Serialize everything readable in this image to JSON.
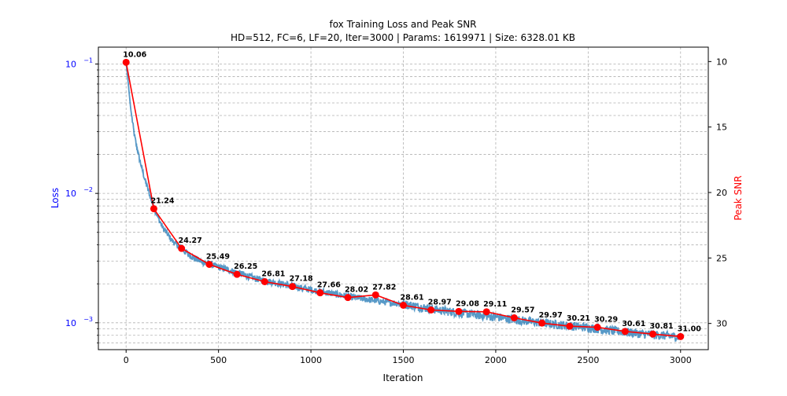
{
  "chart_data": {
    "type": "line",
    "title": "fox Training Loss and Peak SNR",
    "subtitle": "HD=512, FC=6, LF=20, Iter=3000 | Params: 1619971 | Size: 6328.01 KB",
    "xlabel": "Iteration",
    "ylabel_left": "Loss",
    "ylabel_right": "Peak SNR",
    "xlim": [
      -150,
      3150
    ],
    "ylim_left": [
      0.00062,
      0.135
    ],
    "ylim_right": [
      8.9,
      32.0
    ],
    "left_scale": "log",
    "right_axis_inverted": true,
    "grid": true,
    "x_ticks": [
      0,
      500,
      1000,
      1500,
      2000,
      2500,
      3000
    ],
    "x_tick_labels": [
      "0",
      "500",
      "1000",
      "1500",
      "2000",
      "2500",
      "3000"
    ],
    "left_ticks": [
      {
        "value": 0.1,
        "label": "10^-1",
        "base": "10",
        "exp": "−1"
      },
      {
        "value": 0.01,
        "label": "10^-2",
        "base": "10",
        "exp": "−2"
      },
      {
        "value": 0.001,
        "label": "10^-3",
        "base": "10",
        "exp": "−3"
      }
    ],
    "right_ticks": [
      10,
      15,
      20,
      25,
      30
    ],
    "right_tick_labels": [
      "10",
      "15",
      "20",
      "25",
      "30"
    ],
    "loss_series": {
      "color": "#1f77b4",
      "keypoints": [
        [
          0,
          0.102
        ],
        [
          10,
          0.075
        ],
        [
          25,
          0.045
        ],
        [
          45,
          0.028
        ],
        [
          70,
          0.019
        ],
        [
          100,
          0.013
        ],
        [
          130,
          0.0095
        ],
        [
          150,
          0.0078
        ],
        [
          175,
          0.0064
        ],
        [
          200,
          0.0054
        ],
        [
          250,
          0.0043
        ],
        [
          300,
          0.0037
        ],
        [
          350,
          0.0033
        ],
        [
          400,
          0.003
        ],
        [
          450,
          0.00285
        ],
        [
          500,
          0.0027
        ],
        [
          600,
          0.00245
        ],
        [
          700,
          0.0022
        ],
        [
          800,
          0.00205
        ],
        [
          900,
          0.00192
        ],
        [
          1000,
          0.0018
        ],
        [
          1100,
          0.0017
        ],
        [
          1200,
          0.0016
        ],
        [
          1300,
          0.00152
        ],
        [
          1400,
          0.00145
        ],
        [
          1500,
          0.0014
        ],
        [
          1600,
          0.00132
        ],
        [
          1700,
          0.00125
        ],
        [
          1800,
          0.0012
        ],
        [
          1900,
          0.00115
        ],
        [
          2000,
          0.00111
        ],
        [
          2100,
          0.00106
        ],
        [
          2200,
          0.00102
        ],
        [
          2300,
          0.00098
        ],
        [
          2400,
          0.00095
        ],
        [
          2500,
          0.00092
        ],
        [
          2600,
          0.00088
        ],
        [
          2700,
          0.00085
        ],
        [
          2800,
          0.00082
        ],
        [
          2900,
          0.0008
        ],
        [
          3000,
          0.00078
        ]
      ]
    },
    "psnr_series": {
      "color": "#ff0000",
      "x": [
        0,
        150,
        300,
        450,
        600,
        750,
        900,
        1050,
        1200,
        1350,
        1500,
        1650,
        1800,
        1950,
        2100,
        2250,
        2400,
        2550,
        2700,
        2850,
        3000
      ],
      "y": [
        10.06,
        21.24,
        24.27,
        25.49,
        26.25,
        26.81,
        27.18,
        27.66,
        28.02,
        27.82,
        28.61,
        28.97,
        29.08,
        29.11,
        29.57,
        29.97,
        30.21,
        30.29,
        30.61,
        30.81,
        31.0
      ],
      "labels": [
        "10.06",
        "21.24",
        "24.27",
        "25.49",
        "26.25",
        "26.81",
        "27.18",
        "27.66",
        "28.02",
        "27.82",
        "28.61",
        "28.97",
        "29.08",
        "29.11",
        "29.57",
        "29.97",
        "30.21",
        "30.29",
        "30.61",
        "30.81",
        "31.00"
      ]
    },
    "colors": {
      "left_axis": "#0000ff",
      "right_axis": "#ff0000",
      "grid": "#b0b0b0"
    }
  }
}
